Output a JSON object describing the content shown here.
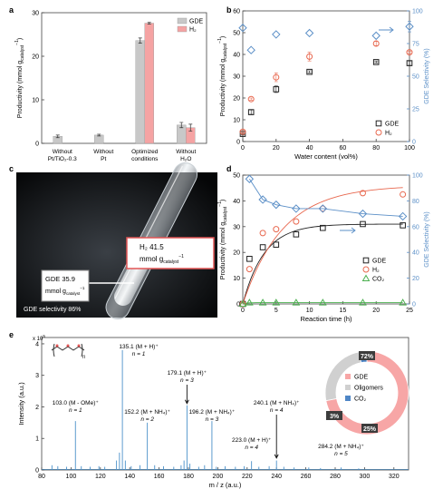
{
  "panels": {
    "a": "a",
    "b": "b",
    "c": "c",
    "d": "d",
    "e": "e"
  },
  "colors": {
    "gde": "#222222",
    "h2": "#e8684f",
    "co2": "#4cb050",
    "sel": "#5b8fc7",
    "bar_gde": "#c8c8c8",
    "bar_h2": "#f5a3a3",
    "spectrum": "#4a90c9",
    "donut_gde": "#f7a6a6",
    "donut_oligo": "#d0d0d0",
    "donut_co2": "#4f86c6"
  },
  "chart_data": [
    {
      "id": "a",
      "type": "bar",
      "ylabel": "Productivity (mmol gcatalyst−1)",
      "ylabel_main": "Productivity (mmol g",
      "ylabel_sub": "catalyst",
      "ylabel_sup": "−1",
      "ylabel_close": ")",
      "ylim": [
        0,
        30
      ],
      "yticks": [
        0,
        10,
        20,
        30
      ],
      "categories": [
        [
          "Without",
          "Pt/TiO₂-0.3"
        ],
        [
          "Without",
          "Pt"
        ],
        [
          "Optimized",
          "conditions"
        ],
        [
          "Without",
          "H₂O"
        ]
      ],
      "series": [
        {
          "name": "GDE",
          "values": [
            1.6,
            1.9,
            23.6,
            4.2
          ],
          "errors": [
            0.3,
            0.2,
            0.6,
            0.6
          ]
        },
        {
          "name": "H₂",
          "values": [
            null,
            null,
            27.6,
            3.6
          ],
          "errors": [
            null,
            null,
            0.2,
            0.8
          ]
        }
      ],
      "legend_position": "top-right"
    },
    {
      "id": "b",
      "type": "scatter",
      "xlabel": "Water content (vol%)",
      "ylabel": "Productivity (mmol gcatalyst−1)",
      "ylabel_main": "Productivity (mmol g",
      "ylabel_sub": "catalyst",
      "ylabel_sup": "−1",
      "ylabel_close": ")",
      "y2label": "GDE Selectivity (%)",
      "xlim": [
        0,
        100
      ],
      "xticks": [
        0,
        20,
        40,
        60,
        80,
        100
      ],
      "ylim": [
        0,
        60
      ],
      "yticks": [
        0,
        10,
        20,
        30,
        40,
        50,
        60
      ],
      "y2lim": [
        0,
        100
      ],
      "y2ticks": [
        0,
        25,
        50,
        75,
        100
      ],
      "series": [
        {
          "name": "GDE",
          "x": [
            0,
            5,
            20,
            40,
            80,
            100
          ],
          "y": [
            3.5,
            13.5,
            24,
            32,
            36.5,
            36
          ],
          "errors": [
            0.5,
            1,
            1.5,
            0.5,
            0.5,
            1
          ]
        },
        {
          "name": "H₂",
          "x": [
            0,
            5,
            20,
            40,
            80,
            100
          ],
          "y": [
            4.5,
            19.5,
            29.5,
            39,
            45,
            41
          ],
          "errors": [
            0.5,
            0.5,
            2,
            2,
            1,
            0.5
          ]
        },
        {
          "name": "GDE selectivity",
          "axis": "right",
          "x": [
            0,
            5,
            20,
            40,
            80,
            100
          ],
          "y": [
            87,
            70,
            82,
            83,
            81,
            88
          ],
          "errors": [
            0,
            0,
            0,
            0,
            0,
            4
          ]
        }
      ],
      "legend_position": "bottom-right"
    },
    {
      "id": "d",
      "type": "scatter",
      "xlabel": "Reaction time (h)",
      "ylabel": "Productivity (mmol gcatalyst−1)",
      "ylabel_main": "Productivity (mmol g",
      "ylabel_sub": "catalyst",
      "ylabel_sup": "−1",
      "ylabel_close": ")",
      "y2label": "GDE Selectivity (%)",
      "xlim": [
        0,
        25
      ],
      "xticks": [
        0,
        5,
        10,
        15,
        20,
        25
      ],
      "ylim": [
        0,
        50
      ],
      "yticks": [
        0,
        10,
        20,
        30,
        40,
        50
      ],
      "y2lim": [
        0,
        100
      ],
      "y2ticks": [
        0,
        20,
        40,
        60,
        80,
        100
      ],
      "series": [
        {
          "name": "GDE",
          "x": [
            0,
            1,
            3,
            5,
            8,
            12,
            18,
            24
          ],
          "y": [
            0,
            17.5,
            22,
            23,
            27,
            29.5,
            31,
            30.5
          ]
        },
        {
          "name": "H₂",
          "x": [
            0,
            1,
            3,
            5,
            8,
            12,
            18,
            24
          ],
          "y": [
            0,
            13.5,
            27.5,
            29,
            32,
            37,
            43,
            42.5
          ]
        },
        {
          "name": "CO₂",
          "x": [
            0,
            1,
            3,
            5,
            8,
            12,
            18,
            24
          ],
          "y": [
            0,
            0.5,
            0.5,
            0.5,
            0.5,
            0.5,
            0.5,
            0.5
          ]
        },
        {
          "name": "GDE selectivity",
          "axis": "right",
          "x": [
            1,
            3,
            5,
            8,
            12,
            18,
            24
          ],
          "y": [
            97,
            81,
            77,
            74,
            74,
            70,
            68
          ]
        }
      ],
      "legend_position": "right"
    },
    {
      "id": "e",
      "type": "line",
      "xlabel": "m / z (a.u.)",
      "ylabel": "Intensity (a.u.)",
      "y_multiplier": "x 10",
      "y_multiplier_exp": "5",
      "xlim": [
        80,
        330
      ],
      "xticks": [
        80,
        100,
        120,
        140,
        160,
        180,
        200,
        220,
        240,
        260,
        280,
        300,
        320
      ],
      "ylim": [
        0,
        4.2
      ],
      "yticks": [
        0,
        1,
        2,
        3,
        4
      ],
      "peaks": [
        {
          "x": 87,
          "y": 0.15
        },
        {
          "x": 91,
          "y": 0.12
        },
        {
          "x": 97,
          "y": 0.1
        },
        {
          "x": 103,
          "y": 1.55
        },
        {
          "x": 107,
          "y": 0.12
        },
        {
          "x": 113,
          "y": 0.1
        },
        {
          "x": 119,
          "y": 0.12
        },
        {
          "x": 123,
          "y": 0.1
        },
        {
          "x": 131,
          "y": 0.3
        },
        {
          "x": 133,
          "y": 0.55
        },
        {
          "x": 135,
          "y": 3.8
        },
        {
          "x": 137,
          "y": 0.3
        },
        {
          "x": 141,
          "y": 0.12
        },
        {
          "x": 147,
          "y": 0.15
        },
        {
          "x": 152,
          "y": 1.5
        },
        {
          "x": 157,
          "y": 0.15
        },
        {
          "x": 163,
          "y": 0.12
        },
        {
          "x": 170,
          "y": 0.1
        },
        {
          "x": 175,
          "y": 0.15
        },
        {
          "x": 177,
          "y": 0.3
        },
        {
          "x": 179,
          "y": 2.05
        },
        {
          "x": 181,
          "y": 0.2
        },
        {
          "x": 187,
          "y": 0.1
        },
        {
          "x": 191,
          "y": 0.15
        },
        {
          "x": 196,
          "y": 1.55
        },
        {
          "x": 199,
          "y": 0.1
        },
        {
          "x": 205,
          "y": 0.12
        },
        {
          "x": 212,
          "y": 0.1
        },
        {
          "x": 218,
          "y": 0.12
        },
        {
          "x": 223,
          "y": 0.28
        },
        {
          "x": 228,
          "y": 0.1
        },
        {
          "x": 235,
          "y": 0.12
        },
        {
          "x": 240,
          "y": 0.3
        },
        {
          "x": 245,
          "y": 0.1
        },
        {
          "x": 252,
          "y": 0.08
        },
        {
          "x": 262,
          "y": 0.08
        },
        {
          "x": 270,
          "y": 0.06
        },
        {
          "x": 284,
          "y": 0.08
        },
        {
          "x": 296,
          "y": 0.05
        }
      ],
      "annotations": [
        {
          "x": 135,
          "label": "135.1 (M + H)⁺",
          "sub": "n = 1"
        },
        {
          "x": 179,
          "label": "179.1 (M + H)⁺",
          "sub": "n = 3",
          "arrow": true
        },
        {
          "x": 103,
          "label": "103.0 (M - OMe)⁺",
          "sub": "n = 1"
        },
        {
          "x": 152,
          "label": "152.2 (M + NH₄)⁺",
          "sub": "n = 2"
        },
        {
          "x": 196,
          "label": "196.2 (M + NH₄)⁺",
          "sub": "n = 3"
        },
        {
          "x": 240,
          "label": "240.1 (M + NH₄)⁺",
          "sub": "n = 4",
          "arrow": true
        },
        {
          "x": 223,
          "label": "223.0 (M + H)⁺",
          "sub": "n = 4"
        },
        {
          "x": 284,
          "label": "284.2 (M + NH₄)⁺",
          "sub": "n = 5"
        }
      ]
    },
    {
      "id": "e-donut",
      "type": "pie",
      "slices": [
        {
          "name": "GDE",
          "value": 72,
          "label": "72%"
        },
        {
          "name": "Oligomers",
          "value": 25,
          "label": "25%"
        },
        {
          "name": "CO₂",
          "value": 3,
          "label": "3%"
        }
      ],
      "legend": [
        "GDE",
        "Oligomers",
        "CO₂"
      ]
    }
  ],
  "photo": {
    "h2_value": "H₂  41.5",
    "h2_unit": "mmol g",
    "h2_unit_sub": "catalyst",
    "h2_unit_sup": "−1",
    "gde_value": "GDE  35.9",
    "gde_unit": "mmol g",
    "gde_unit_sub": "catalyst",
    "gde_unit_sup": "−1",
    "selectivity": "GDE selectivity  86%"
  },
  "structure_n": "n"
}
